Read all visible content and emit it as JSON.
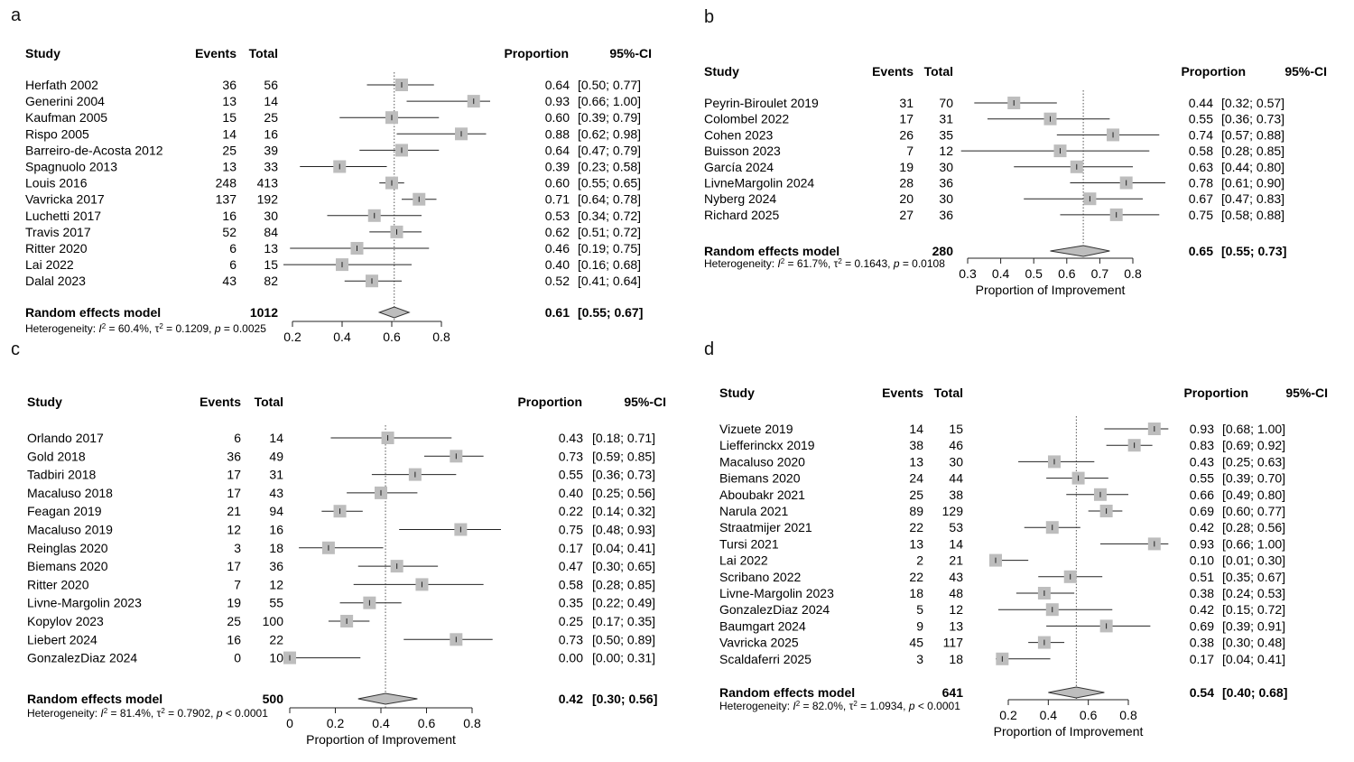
{
  "headers": {
    "study": "Study",
    "events": "Events",
    "total": "Total",
    "proportion": "Proportion",
    "ci": "95%-CI"
  },
  "chart_data": [
    {
      "panel": "a",
      "type": "forest",
      "xlabel": "",
      "xticks": [
        0.2,
        0.4,
        0.6,
        0.8
      ],
      "xlim": [
        0.2,
        0.8
      ],
      "summary_line": 0.61,
      "studies": [
        {
          "name": "Herfath 2002",
          "events": "36",
          "total": "56",
          "prop": 0.64,
          "lo": 0.5,
          "hi": 0.77,
          "ci": "[0.50; 0.77]"
        },
        {
          "name": "Generini 2004",
          "events": "13",
          "total": "14",
          "prop": 0.93,
          "lo": 0.66,
          "hi": 1.0,
          "ci": "[0.66; 1.00]"
        },
        {
          "name": "Kaufman 2005",
          "events": "15",
          "total": "25",
          "prop": 0.6,
          "lo": 0.39,
          "hi": 0.79,
          "ci": "[0.39; 0.79]"
        },
        {
          "name": "Rispo 2005",
          "events": "14",
          "total": "16",
          "prop": 0.88,
          "lo": 0.62,
          "hi": 0.98,
          "ci": "[0.62; 0.98]"
        },
        {
          "name": "Barreiro-de-Acosta 2012",
          "events": "25",
          "total": "39",
          "prop": 0.64,
          "lo": 0.47,
          "hi": 0.79,
          "ci": "[0.47; 0.79]"
        },
        {
          "name": "Spagnuolo 2013",
          "events": "13",
          "total": "33",
          "prop": 0.39,
          "lo": 0.23,
          "hi": 0.58,
          "ci": "[0.23; 0.58]"
        },
        {
          "name": "Louis 2016",
          "events": "248",
          "total": "413",
          "prop": 0.6,
          "lo": 0.55,
          "hi": 0.65,
          "ci": "[0.55; 0.65]"
        },
        {
          "name": "Vavricka 2017",
          "events": "137",
          "total": "192",
          "prop": 0.71,
          "lo": 0.64,
          "hi": 0.78,
          "ci": "[0.64; 0.78]"
        },
        {
          "name": "Luchetti 2017",
          "events": "16",
          "total": "30",
          "prop": 0.53,
          "lo": 0.34,
          "hi": 0.72,
          "ci": "[0.34; 0.72]"
        },
        {
          "name": "Travis 2017",
          "events": "52",
          "total": "84",
          "prop": 0.62,
          "lo": 0.51,
          "hi": 0.72,
          "ci": "[0.51; 0.72]"
        },
        {
          "name": "Ritter 2020",
          "events": "6",
          "total": "13",
          "prop": 0.46,
          "lo": 0.19,
          "hi": 0.75,
          "ci": "[0.19; 0.75]"
        },
        {
          "name": "Lai 2022",
          "events": "6",
          "total": "15",
          "prop": 0.4,
          "lo": 0.16,
          "hi": 0.68,
          "ci": "[0.16; 0.68]"
        },
        {
          "name": "Dalal 2023",
          "events": "43",
          "total": "82",
          "prop": 0.52,
          "lo": 0.41,
          "hi": 0.64,
          "ci": "[0.41; 0.64]"
        }
      ],
      "summary": {
        "label": "Random effects model",
        "total": "1012",
        "prop": 0.61,
        "lo": 0.55,
        "hi": 0.67,
        "ci": "[0.55; 0.67]"
      },
      "heterogeneity": {
        "prefix": "Heterogeneity: ",
        "i2": "60.4%",
        "tau2": "0.1209",
        "p_op": "=",
        "p": "0.0025"
      }
    },
    {
      "panel": "b",
      "type": "forest",
      "xlabel": "Proportion of Improvement",
      "xticks": [
        0.3,
        0.4,
        0.5,
        0.6,
        0.7,
        0.8
      ],
      "xlim": [
        0.3,
        0.8
      ],
      "summary_line": 0.65,
      "studies": [
        {
          "name": "Peyrin-Biroulet 2019",
          "events": "31",
          "total": "70",
          "prop": 0.44,
          "lo": 0.32,
          "hi": 0.57,
          "ci": "[0.32; 0.57]"
        },
        {
          "name": "Colombel 2022",
          "events": "17",
          "total": "31",
          "prop": 0.55,
          "lo": 0.36,
          "hi": 0.73,
          "ci": "[0.36; 0.73]"
        },
        {
          "name": "Cohen 2023",
          "events": "26",
          "total": "35",
          "prop": 0.74,
          "lo": 0.57,
          "hi": 0.88,
          "ci": "[0.57; 0.88]"
        },
        {
          "name": "Buisson 2023",
          "events": "7",
          "total": "12",
          "prop": 0.58,
          "lo": 0.28,
          "hi": 0.85,
          "ci": "[0.28; 0.85]"
        },
        {
          "name": "García 2024",
          "events": "19",
          "total": "30",
          "prop": 0.63,
          "lo": 0.44,
          "hi": 0.8,
          "ci": "[0.44; 0.80]"
        },
        {
          "name": "LivneMargolin 2024",
          "events": "28",
          "total": "36",
          "prop": 0.78,
          "lo": 0.61,
          "hi": 0.9,
          "ci": "[0.61; 0.90]"
        },
        {
          "name": "Nyberg 2024",
          "events": "20",
          "total": "30",
          "prop": 0.67,
          "lo": 0.47,
          "hi": 0.83,
          "ci": "[0.47; 0.83]"
        },
        {
          "name": "Richard 2025",
          "events": "27",
          "total": "36",
          "prop": 0.75,
          "lo": 0.58,
          "hi": 0.88,
          "ci": "[0.58; 0.88]"
        }
      ],
      "summary": {
        "label": "Random effects model",
        "total": "280",
        "prop": 0.65,
        "lo": 0.55,
        "hi": 0.73,
        "ci": "[0.55; 0.73]"
      },
      "heterogeneity": {
        "prefix": "Heterogeneity: ",
        "i2": "61.7%",
        "tau2": "0.1643",
        "p_op": "=",
        "p": "0.0108"
      }
    },
    {
      "panel": "c",
      "type": "forest",
      "xlabel": "Proportion of Improvement",
      "xticks": [
        0,
        0.2,
        0.4,
        0.6,
        0.8
      ],
      "xlim": [
        0,
        0.8
      ],
      "summary_line": 0.42,
      "studies": [
        {
          "name": "Orlando 2017",
          "events": "6",
          "total": "14",
          "prop": 0.43,
          "lo": 0.18,
          "hi": 0.71,
          "ci": "[0.18; 0.71]"
        },
        {
          "name": "Gold 2018",
          "events": "36",
          "total": "49",
          "prop": 0.73,
          "lo": 0.59,
          "hi": 0.85,
          "ci": "[0.59; 0.85]"
        },
        {
          "name": "Tadbiri 2018",
          "events": "17",
          "total": "31",
          "prop": 0.55,
          "lo": 0.36,
          "hi": 0.73,
          "ci": "[0.36; 0.73]"
        },
        {
          "name": "Macaluso 2018",
          "events": "17",
          "total": "43",
          "prop": 0.4,
          "lo": 0.25,
          "hi": 0.56,
          "ci": "[0.25; 0.56]"
        },
        {
          "name": "Feagan 2019",
          "events": "21",
          "total": "94",
          "prop": 0.22,
          "lo": 0.14,
          "hi": 0.32,
          "ci": "[0.14; 0.32]"
        },
        {
          "name": "Macaluso 2019",
          "events": "12",
          "total": "16",
          "prop": 0.75,
          "lo": 0.48,
          "hi": 0.93,
          "ci": "[0.48; 0.93]"
        },
        {
          "name": "Reinglas 2020",
          "events": "3",
          "total": "18",
          "prop": 0.17,
          "lo": 0.04,
          "hi": 0.41,
          "ci": "[0.04; 0.41]"
        },
        {
          "name": "Biemans 2020",
          "events": "17",
          "total": "36",
          "prop": 0.47,
          "lo": 0.3,
          "hi": 0.65,
          "ci": "[0.30; 0.65]"
        },
        {
          "name": "Ritter 2020",
          "events": "7",
          "total": "12",
          "prop": 0.58,
          "lo": 0.28,
          "hi": 0.85,
          "ci": "[0.28; 0.85]"
        },
        {
          "name": "Livne-Margolin 2023",
          "events": "19",
          "total": "55",
          "prop": 0.35,
          "lo": 0.22,
          "hi": 0.49,
          "ci": "[0.22; 0.49]"
        },
        {
          "name": "Kopylov 2023",
          "events": "25",
          "total": "100",
          "prop": 0.25,
          "lo": 0.17,
          "hi": 0.35,
          "ci": "[0.17; 0.35]"
        },
        {
          "name": "Liebert 2024",
          "events": "16",
          "total": "22",
          "prop": 0.73,
          "lo": 0.5,
          "hi": 0.89,
          "ci": "[0.50; 0.89]"
        },
        {
          "name": "GonzalezDiaz 2024",
          "events": "0",
          "total": "10",
          "prop": 0.0,
          "lo": 0.0,
          "hi": 0.31,
          "ci": "[0.00; 0.31]"
        }
      ],
      "summary": {
        "label": "Random effects model",
        "total": "500",
        "prop": 0.42,
        "lo": 0.3,
        "hi": 0.56,
        "ci": "[0.30; 0.56]"
      },
      "heterogeneity": {
        "prefix": "Heterogeneity: ",
        "i2": "81.4%",
        "tau2": "0.7902",
        "p_op": "<",
        "p": "0.0001"
      }
    },
    {
      "panel": "d",
      "type": "forest",
      "xlabel": "Proportion of Improvement",
      "xticks": [
        0.2,
        0.4,
        0.6,
        0.8
      ],
      "xlim": [
        0.2,
        0.8
      ],
      "summary_line": 0.54,
      "studies": [
        {
          "name": "Vizuete 2019",
          "events": "14",
          "total": "15",
          "prop": 0.93,
          "lo": 0.68,
          "hi": 1.0,
          "ci": "[0.68; 1.00]"
        },
        {
          "name": "Liefferinckx 2019",
          "events": "38",
          "total": "46",
          "prop": 0.83,
          "lo": 0.69,
          "hi": 0.92,
          "ci": "[0.69; 0.92]"
        },
        {
          "name": "Macaluso 2020",
          "events": "13",
          "total": "30",
          "prop": 0.43,
          "lo": 0.25,
          "hi": 0.63,
          "ci": "[0.25; 0.63]"
        },
        {
          "name": "Biemans 2020",
          "events": "24",
          "total": "44",
          "prop": 0.55,
          "lo": 0.39,
          "hi": 0.7,
          "ci": "[0.39; 0.70]"
        },
        {
          "name": "Aboubakr 2021",
          "events": "25",
          "total": "38",
          "prop": 0.66,
          "lo": 0.49,
          "hi": 0.8,
          "ci": "[0.49; 0.80]"
        },
        {
          "name": "Narula 2021",
          "events": "89",
          "total": "129",
          "prop": 0.69,
          "lo": 0.6,
          "hi": 0.77,
          "ci": "[0.60; 0.77]"
        },
        {
          "name": "Straatmijer 2021",
          "events": "22",
          "total": "53",
          "prop": 0.42,
          "lo": 0.28,
          "hi": 0.56,
          "ci": "[0.28; 0.56]"
        },
        {
          "name": "Tursi 2021",
          "events": "13",
          "total": "14",
          "prop": 0.93,
          "lo": 0.66,
          "hi": 1.0,
          "ci": "[0.66; 1.00]"
        },
        {
          "name": "Lai 2022",
          "events": "2",
          "total": "21",
          "prop": 0.1,
          "lo": 0.01,
          "hi": 0.3,
          "ci": "[0.01; 0.30]"
        },
        {
          "name": "Scribano 2022",
          "events": "22",
          "total": "43",
          "prop": 0.51,
          "lo": 0.35,
          "hi": 0.67,
          "ci": "[0.35; 0.67]"
        },
        {
          "name": "Livne-Margolin 2023",
          "events": "18",
          "total": "48",
          "prop": 0.38,
          "lo": 0.24,
          "hi": 0.53,
          "ci": "[0.24; 0.53]"
        },
        {
          "name": "GonzalezDiaz 2024",
          "events": "5",
          "total": "12",
          "prop": 0.42,
          "lo": 0.15,
          "hi": 0.72,
          "ci": "[0.15; 0.72]"
        },
        {
          "name": "Baumgart 2024",
          "events": "9",
          "total": "13",
          "prop": 0.69,
          "lo": 0.39,
          "hi": 0.91,
          "ci": "[0.39; 0.91]"
        },
        {
          "name": "Vavricka 2025",
          "events": "45",
          "total": "117",
          "prop": 0.38,
          "lo": 0.3,
          "hi": 0.48,
          "ci": "[0.30; 0.48]"
        },
        {
          "name": "Scaldaferri 2025",
          "events": "3",
          "total": "18",
          "prop": 0.17,
          "lo": 0.04,
          "hi": 0.41,
          "ci": "[0.04; 0.41]"
        }
      ],
      "summary": {
        "label": "Random effects model",
        "total": "641",
        "prop": 0.54,
        "lo": 0.4,
        "hi": 0.68,
        "ci": "[0.40; 0.68]"
      },
      "heterogeneity": {
        "prefix": "Heterogeneity: ",
        "i2": "82.0%",
        "tau2": "1.0934",
        "p_op": "<",
        "p": "0.0001"
      }
    }
  ]
}
